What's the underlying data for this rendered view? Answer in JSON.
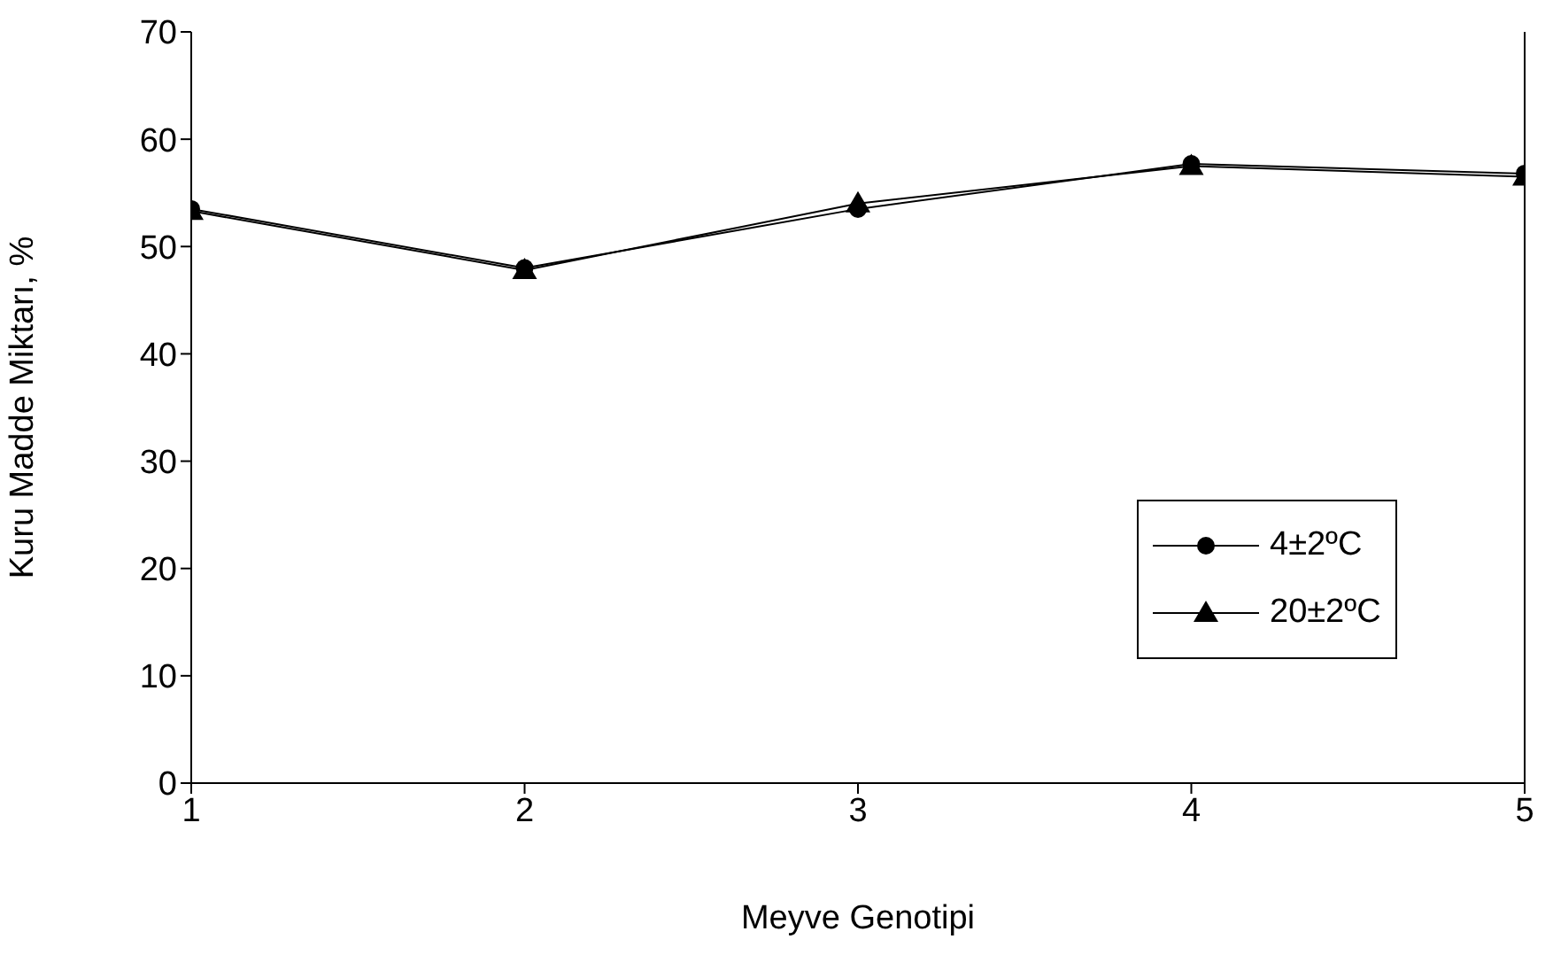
{
  "chart_data": {
    "type": "line",
    "xlabel": "Meyve Genotipi",
    "ylabel": "Kuru Madde Miktarı, %",
    "x": [
      1,
      2,
      3,
      4,
      5
    ],
    "xlim": [
      1,
      5
    ],
    "xticks": [
      1,
      2,
      3,
      4,
      5
    ],
    "ylim": [
      0,
      70
    ],
    "yticks": [
      0,
      10,
      20,
      30,
      40,
      50,
      60,
      70
    ],
    "grid": false,
    "legend": "right",
    "line_style": "solid",
    "series": [
      {
        "name": "4±2ºC",
        "color": "#000000",
        "marker": "circle",
        "values": [
          53.5,
          48,
          53.5,
          57.7,
          56.8
        ]
      },
      {
        "name": "20±2ºC",
        "color": "#000000",
        "marker": "triangle",
        "values": [
          53.3,
          47.8,
          54,
          57.5,
          56.5
        ]
      }
    ]
  }
}
